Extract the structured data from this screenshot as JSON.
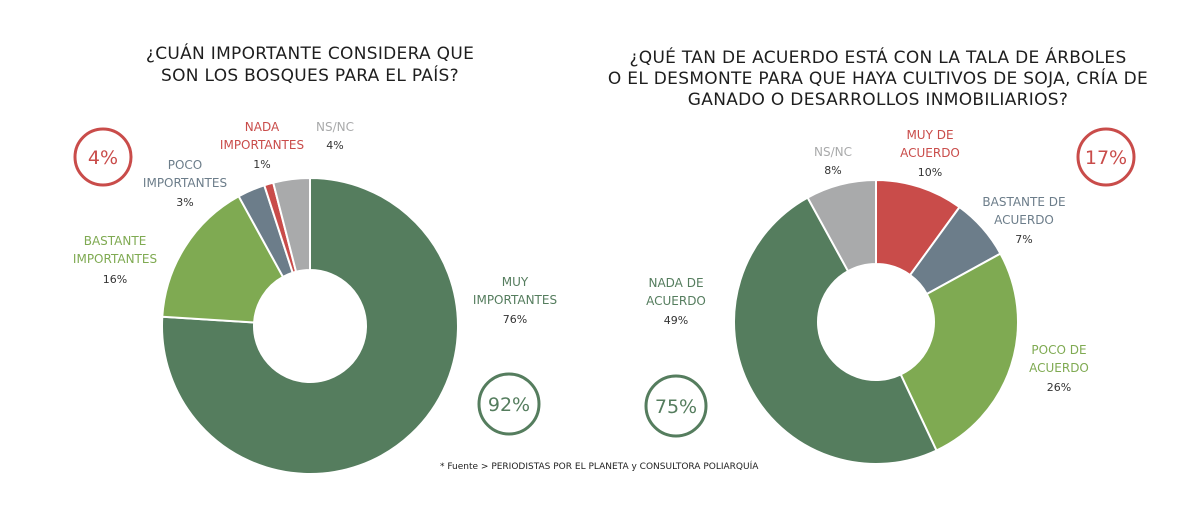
{
  "source": "* Fuente > PERIODISTAS POR EL PLANETA y CONSULTORA POLIARQUÍA",
  "colors": {
    "dark_green": "#557d5e",
    "light_green": "#7faa52",
    "slate": "#6c7d8a",
    "red": "#c94c4a",
    "gray": "#a9aaab"
  },
  "chart_data": [
    {
      "type": "pie",
      "donut": true,
      "title_lines": [
        "¿CUÁN IMPORTANTE CONSIDERA QUE",
        "SON LOS BOSQUES PARA EL PAÍS?"
      ],
      "slices": [
        {
          "label_lines": [
            "MUY",
            "IMPORTANTES"
          ],
          "pct_label": "76%",
          "value": 76,
          "color": "#557d5e"
        },
        {
          "label_lines": [
            "BASTANTE",
            "IMPORTANTES"
          ],
          "pct_label": "16%",
          "value": 16,
          "color": "#7faa52"
        },
        {
          "label_lines": [
            "POCO",
            "IMPORTANTES"
          ],
          "pct_label": "3%",
          "value": 3,
          "color": "#6c7d8a"
        },
        {
          "label_lines": [
            "NADA",
            "IMPORTANTES"
          ],
          "pct_label": "1%",
          "value": 1,
          "color": "#c94c4a"
        },
        {
          "label_lines": [
            "NS/NC"
          ],
          "pct_label": "4%",
          "value": 4,
          "color": "#a9aaab"
        }
      ],
      "badges": [
        {
          "text": "4%",
          "color": "#c94c4a"
        },
        {
          "text": "92%",
          "color": "#557d5e"
        }
      ]
    },
    {
      "type": "pie",
      "donut": true,
      "title_lines": [
        "¿QUÉ TAN DE ACUERDO ESTÁ CON LA TALA DE ÁRBOLES",
        "O EL DESMONTE PARA QUE HAYA CULTIVOS DE SOJA, CRÍA DE",
        "GANADO O DESARROLLOS INMOBILIARIOS?"
      ],
      "slices": [
        {
          "label_lines": [
            "MUY DE",
            "ACUERDO"
          ],
          "pct_label": "10%",
          "value": 10,
          "color": "#c94c4a"
        },
        {
          "label_lines": [
            "BASTANTE DE",
            "ACUERDO"
          ],
          "pct_label": "7%",
          "value": 7,
          "color": "#6c7d8a"
        },
        {
          "label_lines": [
            "POCO DE",
            "ACUERDO"
          ],
          "pct_label": "26%",
          "value": 26,
          "color": "#7faa52"
        },
        {
          "label_lines": [
            "NADA DE",
            "ACUERDO"
          ],
          "pct_label": "49%",
          "value": 49,
          "color": "#557d5e"
        },
        {
          "label_lines": [
            "NS/NC"
          ],
          "pct_label": "8%",
          "value": 8,
          "color": "#a9aaab"
        }
      ],
      "badges": [
        {
          "text": "17%",
          "color": "#c94c4a"
        },
        {
          "text": "75%",
          "color": "#557d5e"
        }
      ]
    }
  ]
}
